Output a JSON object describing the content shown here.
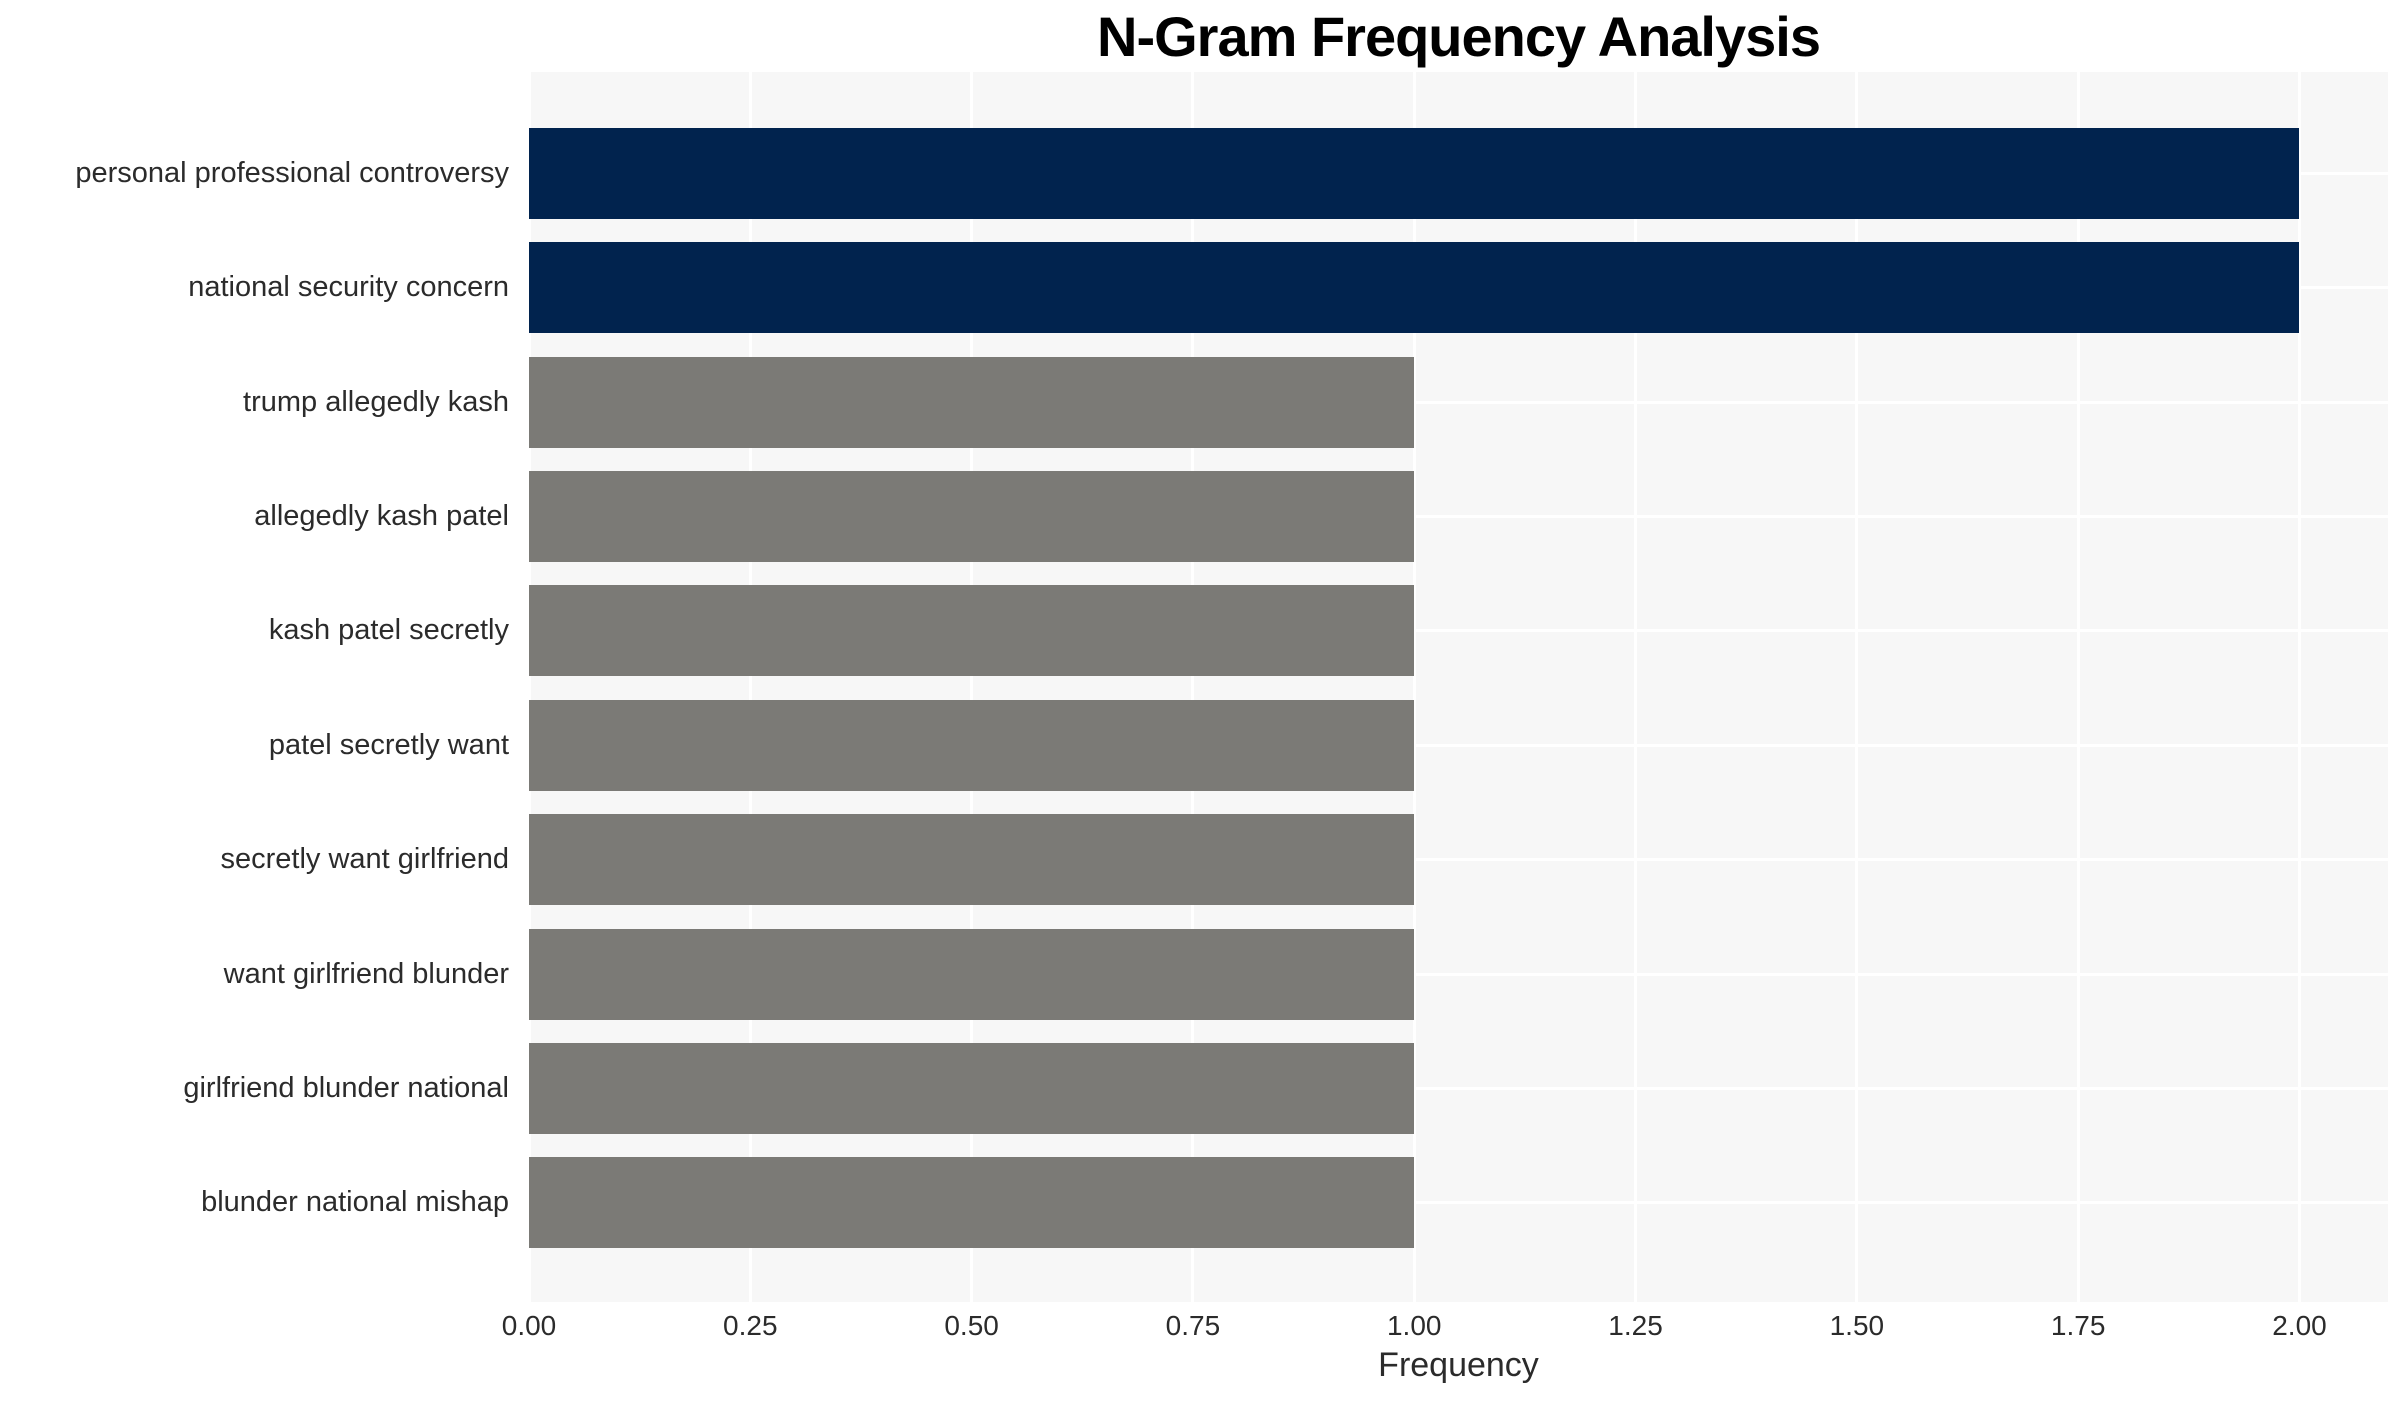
{
  "chart_data": {
    "type": "bar",
    "orientation": "horizontal",
    "title": "N-Gram Frequency Analysis",
    "xlabel": "Frequency",
    "ylabel": "",
    "categories": [
      "personal professional controversy",
      "national security concern",
      "trump allegedly kash",
      "allegedly kash patel",
      "kash patel secretly",
      "patel secretly want",
      "secretly want girlfriend",
      "want girlfriend blunder",
      "girlfriend blunder national",
      "blunder national mishap"
    ],
    "values": [
      2,
      2,
      1,
      1,
      1,
      1,
      1,
      1,
      1,
      1
    ],
    "bar_colors": [
      "#01234e",
      "#01234e",
      "#7b7a76",
      "#7b7a76",
      "#7b7a76",
      "#7b7a76",
      "#7b7a76",
      "#7b7a76",
      "#7b7a76",
      "#7b7a76"
    ],
    "xticks": [
      "0.00",
      "0.25",
      "0.50",
      "0.75",
      "1.00",
      "1.25",
      "1.50",
      "1.75",
      "2.00"
    ],
    "xlim": [
      0,
      2.1
    ],
    "grid": true,
    "legend": false,
    "colors": {
      "highlight": "#01234e",
      "base": "#7b7a76",
      "plot_background": "#f7f7f7",
      "figure_background": "#ffffff",
      "gridline": "#ffffff",
      "text": "#2b2b2b",
      "title_text": "#000000"
    }
  }
}
